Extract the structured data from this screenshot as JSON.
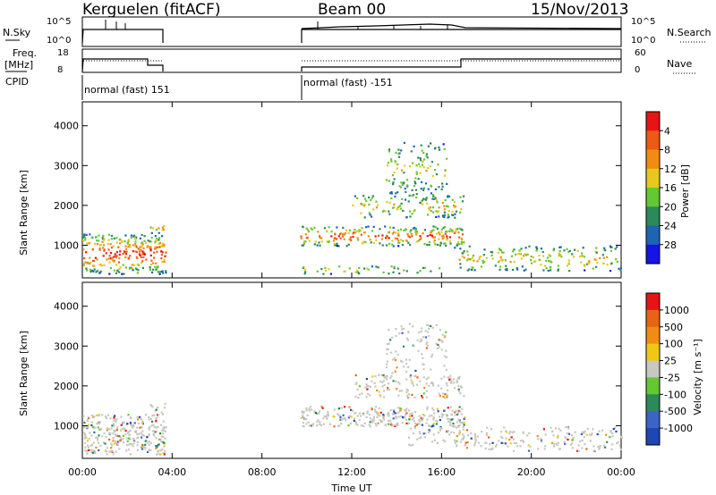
{
  "header": {
    "station": "Kerguelen (fitACF)",
    "beam": "Beam 00",
    "date": "15/Nov/2013"
  },
  "top_panels": {
    "nsky_label": "N.Sky",
    "nsky_ticks": [
      "10^5",
      "10^0"
    ],
    "nsearch_label": "N.Search",
    "nsearch_ticks": [
      "10^5",
      "10^0"
    ],
    "freq_label_line1": "Freq.",
    "freq_label_line2": "[MHz]",
    "freq_ticks": [
      "18",
      "8"
    ],
    "nave_label": "Nave",
    "nave_ticks": [
      "60",
      "0"
    ],
    "cpid_label": "CPID",
    "cpid_entries": [
      "normal (fast) 151",
      "normal (fast) -151"
    ]
  },
  "chart_data": [
    {
      "type": "heatmap",
      "name": "power",
      "ylabel": "Slant Range [km]",
      "xlabel": "Time UT",
      "xlim_hours": [
        0,
        24
      ],
      "ylim": [
        180,
        4600
      ],
      "y_ticks": [
        "1000",
        "2000",
        "3000",
        "4000"
      ],
      "x_ticks": [
        "00:00",
        "04:00",
        "08:00",
        "12:00",
        "16:00",
        "20:00",
        "00:00"
      ],
      "colorbar_label": "Power [dB]",
      "colorbar_ticks": [
        "4",
        "8",
        "12",
        "16",
        "20",
        "24",
        "28"
      ],
      "colorbar_colors": [
        "#1414e6",
        "#1e64b4",
        "#2a8a5a",
        "#64c832",
        "#e6c81e",
        "#f08c14",
        "#ec5a14",
        "#e61414"
      ],
      "scatter_regions": [
        {
          "t0": 0.0,
          "t1": 3.7,
          "r0": 300,
          "r1": 1300,
          "level": 0.85
        },
        {
          "t0": 3.0,
          "t1": 3.7,
          "r0": 1300,
          "r1": 1600,
          "level": 0.55
        },
        {
          "t0": 9.7,
          "t1": 17.0,
          "r0": 1000,
          "r1": 1500,
          "level": 0.75
        },
        {
          "t0": 12.0,
          "t1": 17.0,
          "r0": 1700,
          "r1": 2300,
          "level": 0.45
        },
        {
          "t0": 13.5,
          "t1": 16.2,
          "r0": 2300,
          "r1": 3600,
          "level": 0.35
        },
        {
          "t0": 16.5,
          "t1": 24.0,
          "r0": 380,
          "r1": 1000,
          "level": 0.45
        },
        {
          "t0": 9.7,
          "t1": 16.0,
          "r0": 300,
          "r1": 500,
          "level": 0.4
        }
      ]
    },
    {
      "type": "heatmap",
      "name": "velocity",
      "ylabel": "Slant Range [km]",
      "xlabel": "Time UT",
      "xlim_hours": [
        0,
        24
      ],
      "ylim": [
        180,
        4600
      ],
      "y_ticks": [
        "1000",
        "2000",
        "3000",
        "4000"
      ],
      "x_ticks": [
        "00:00",
        "04:00",
        "08:00",
        "12:00",
        "16:00",
        "20:00",
        "00:00"
      ],
      "colorbar_label": "Velocity [m s⁻¹]",
      "colorbar_ticks": [
        "1000",
        "500",
        "100",
        "25",
        "-25",
        "-100",
        "-500",
        "-1000"
      ],
      "colorbar_colors": [
        "#1e46b4",
        "#3c64c8",
        "#2a8a5a",
        "#64c832",
        "#c8c8c0",
        "#f0c814",
        "#f08c14",
        "#e66414",
        "#e61414"
      ],
      "scatter_regions": [
        {
          "t0": 0.0,
          "t1": 3.7,
          "r0": 300,
          "r1": 1300,
          "level": 0.9
        },
        {
          "t0": 3.0,
          "t1": 3.7,
          "r0": 1300,
          "r1": 1600,
          "level": 0.6
        },
        {
          "t0": 9.7,
          "t1": 17.0,
          "r0": 1000,
          "r1": 1500,
          "level": 0.8
        },
        {
          "t0": 12.0,
          "t1": 17.0,
          "r0": 1700,
          "r1": 2300,
          "level": 0.5
        },
        {
          "t0": 13.5,
          "t1": 16.2,
          "r0": 2300,
          "r1": 3600,
          "level": 0.3
        },
        {
          "t0": 16.5,
          "t1": 24.0,
          "r0": 380,
          "r1": 1000,
          "level": 0.45
        },
        {
          "t0": 14.5,
          "t1": 17.0,
          "r0": 500,
          "r1": 1200,
          "level": 0.4
        }
      ]
    }
  ]
}
